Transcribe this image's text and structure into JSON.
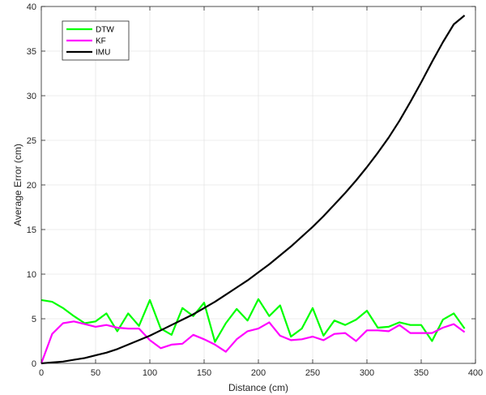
{
  "chart_data": {
    "type": "line",
    "title": "",
    "xlabel": "Distance (cm)",
    "ylabel": "Average Error (cm)",
    "xlim": [
      0,
      400
    ],
    "ylim": [
      0,
      40
    ],
    "xticks": [
      0,
      50,
      100,
      150,
      200,
      250,
      300,
      350,
      400
    ],
    "yticks": [
      0,
      5,
      10,
      15,
      20,
      25,
      30,
      35,
      40
    ],
    "grid": true,
    "legend_position": "top-left",
    "series": [
      {
        "name": "DTW",
        "color": "#00ff00",
        "x": [
          0,
          10,
          20,
          30,
          40,
          50,
          60,
          70,
          80,
          90,
          100,
          110,
          120,
          130,
          140,
          150,
          160,
          170,
          180,
          190,
          200,
          210,
          220,
          230,
          240,
          250,
          260,
          270,
          280,
          290,
          300,
          310,
          320,
          330,
          340,
          350,
          360,
          370,
          380,
          390
        ],
        "values": [
          7.1,
          6.9,
          6.2,
          5.3,
          4.5,
          4.7,
          5.6,
          3.6,
          5.6,
          4.2,
          7.1,
          3.9,
          3.2,
          6.2,
          5.3,
          6.8,
          2.4,
          4.5,
          6.1,
          4.8,
          7.2,
          5.3,
          6.5,
          3.0,
          3.9,
          6.2,
          3.1,
          4.8,
          4.3,
          4.9,
          5.9,
          4.0,
          4.1,
          4.6,
          4.3,
          4.3,
          2.5,
          4.9,
          5.6,
          3.9
        ]
      },
      {
        "name": "KF",
        "color": "#ff00ff",
        "x": [
          0,
          10,
          20,
          30,
          40,
          50,
          60,
          70,
          80,
          90,
          100,
          110,
          120,
          130,
          140,
          150,
          160,
          170,
          180,
          190,
          200,
          210,
          220,
          230,
          240,
          250,
          260,
          270,
          280,
          290,
          300,
          310,
          320,
          330,
          340,
          350,
          360,
          370,
          380,
          390
        ],
        "values": [
          0.0,
          3.3,
          4.5,
          4.7,
          4.4,
          4.1,
          4.3,
          4.0,
          3.9,
          3.9,
          2.6,
          1.7,
          2.1,
          2.2,
          3.2,
          2.7,
          2.1,
          1.3,
          2.7,
          3.6,
          3.9,
          4.6,
          3.1,
          2.6,
          2.7,
          3.0,
          2.6,
          3.3,
          3.4,
          2.5,
          3.7,
          3.7,
          3.6,
          4.3,
          3.4,
          3.4,
          3.4,
          4.0,
          4.4,
          3.5
        ]
      },
      {
        "name": "IMU",
        "color": "#000000",
        "x": [
          0,
          10,
          20,
          30,
          40,
          50,
          60,
          70,
          80,
          90,
          100,
          110,
          120,
          130,
          140,
          150,
          160,
          170,
          180,
          190,
          200,
          210,
          220,
          230,
          240,
          250,
          260,
          270,
          280,
          290,
          300,
          310,
          320,
          330,
          340,
          350,
          360,
          370,
          380,
          390
        ],
        "values": [
          0.0,
          0.1,
          0.2,
          0.4,
          0.6,
          0.9,
          1.2,
          1.6,
          2.1,
          2.6,
          3.1,
          3.7,
          4.3,
          4.9,
          5.5,
          6.2,
          6.9,
          7.7,
          8.5,
          9.3,
          10.2,
          11.1,
          12.1,
          13.1,
          14.2,
          15.3,
          16.5,
          17.8,
          19.1,
          20.5,
          22.0,
          23.6,
          25.3,
          27.2,
          29.3,
          31.5,
          33.8,
          36.0,
          38.0,
          39.0
        ]
      }
    ]
  }
}
